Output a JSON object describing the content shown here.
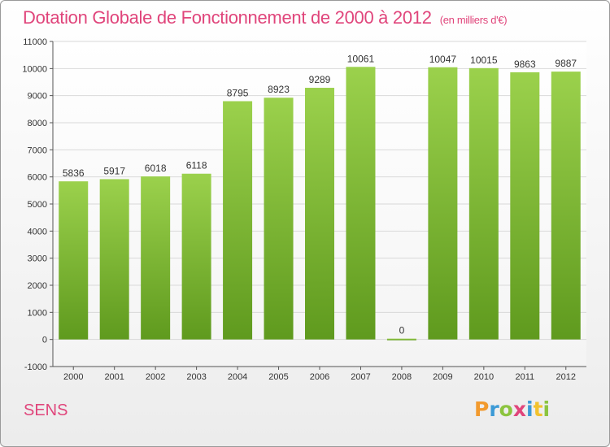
{
  "chart_data": {
    "type": "bar",
    "title": "Dotation Globale de Fonctionnement de 2000 à 2012",
    "subtitle": "(en milliers d'€)",
    "categories": [
      "2000",
      "2001",
      "2002",
      "2003",
      "2004",
      "2005",
      "2006",
      "2007",
      "2008",
      "2009",
      "2010",
      "2011",
      "2012"
    ],
    "values": [
      5836,
      5917,
      6018,
      6118,
      8795,
      8923,
      9289,
      10061,
      0,
      10047,
      10015,
      9863,
      9887
    ],
    "ylim": [
      -1000,
      11000
    ],
    "yticks": [
      -1000,
      0,
      1000,
      2000,
      3000,
      4000,
      5000,
      6000,
      7000,
      8000,
      9000,
      10000,
      11000
    ],
    "grid": true,
    "bar_color": "#8cc43f",
    "bar_color_dark": "#5f9a1e"
  },
  "footer": {
    "commune": "SENS",
    "logo_letters": [
      {
        "ch": "P",
        "color": "#f29a2e"
      },
      {
        "ch": "r",
        "color": "#3c9ad6"
      },
      {
        "ch": "o",
        "color": "#8cc43f"
      },
      {
        "ch": "x",
        "color": "#e0457b"
      },
      {
        "ch": "i",
        "color": "#3c9ad6"
      },
      {
        "ch": "t",
        "color": "#f2c22e"
      },
      {
        "ch": "i",
        "color": "#8cc43f"
      }
    ]
  },
  "colors": {
    "title": "#e0457b",
    "axis_text": "#333333",
    "grid": "#d9d9d9"
  }
}
